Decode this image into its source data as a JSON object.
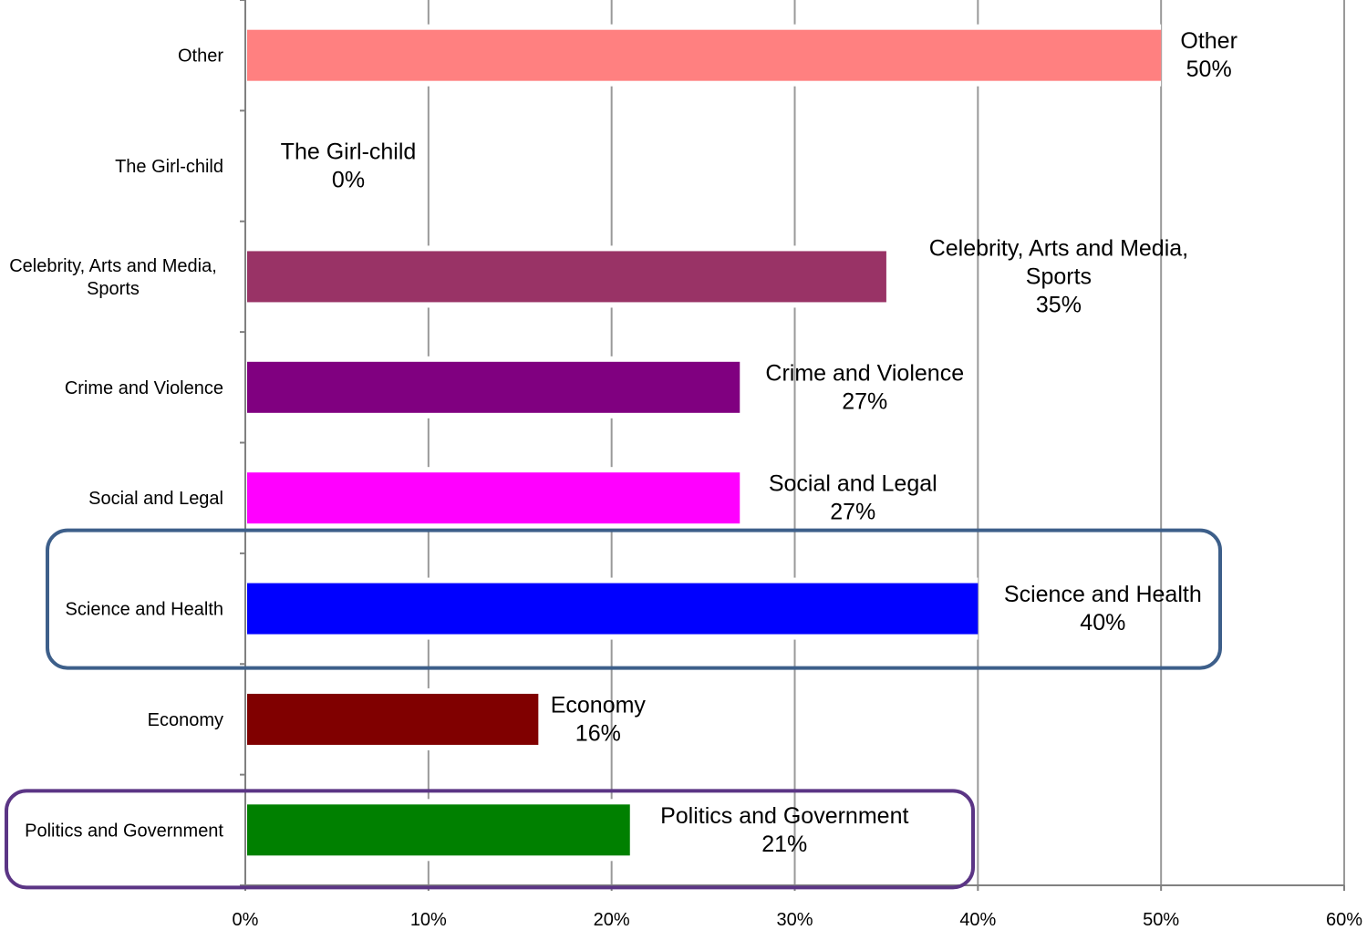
{
  "chart_data": {
    "type": "bar",
    "orientation": "horizontal",
    "title": "",
    "xlabel": "",
    "ylabel": "",
    "xlim": [
      0,
      60
    ],
    "x_ticks": [
      "0%",
      "10%",
      "20%",
      "30%",
      "40%",
      "50%",
      "60%"
    ],
    "grid": "vertical",
    "legend": "none",
    "categories": [
      "Other",
      "The Girl-child",
      "Celebrity, Arts and Media, Sports",
      "Crime and Violence",
      "Social and Legal",
      "Science and Health",
      "Economy",
      "Politics and Government"
    ],
    "category_label_lines": [
      [
        "Other"
      ],
      [
        "The Girl-child"
      ],
      [
        "Celebrity, Arts and Media,",
        "Sports"
      ],
      [
        "Crime and Violence"
      ],
      [
        "Social and Legal"
      ],
      [
        "Science and Health"
      ],
      [
        "Economy"
      ],
      [
        "Politics and Government"
      ]
    ],
    "values": [
      50,
      0,
      35,
      27,
      27,
      40,
      16,
      21
    ],
    "data_labels": [
      [
        "Other",
        "50%"
      ],
      [
        "The Girl-child",
        "0%"
      ],
      [
        "Celebrity, Arts and Media,",
        "Sports",
        "35%"
      ],
      [
        "Crime and Violence",
        "27%"
      ],
      [
        "Social and Legal",
        "27%"
      ],
      [
        "Science and Health",
        "40%"
      ],
      [
        "Economy",
        "16%"
      ],
      [
        "Politics and Government",
        "21%"
      ]
    ],
    "colors": [
      "#FF8080",
      "#FFFFFF",
      "#993366",
      "#800080",
      "#FF00FF",
      "#0000FF",
      "#800000",
      "#008000"
    ],
    "highlight_boxes": [
      {
        "category": "Science and Health",
        "color": "#3D5F8A"
      },
      {
        "category": "Politics and Government",
        "color": "#5B3585"
      }
    ],
    "grid_color": "#999999",
    "axis_color": "#808080"
  }
}
